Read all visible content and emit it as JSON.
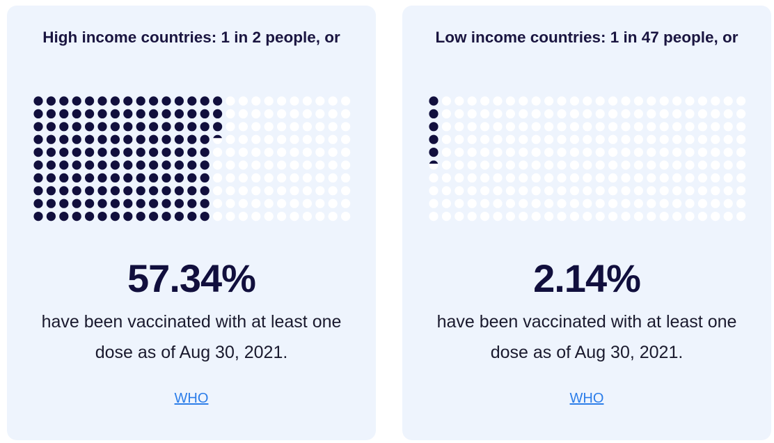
{
  "chart_data": [
    {
      "type": "waffle",
      "title": "High income countries: 1 in 2 people, or",
      "value_percent": 57.34,
      "value_label": "57.34%",
      "description": "have been vaccinated with at least one dose as of Aug 30, 2021.",
      "source": "WHO",
      "grid": {
        "rows": 10,
        "cols": 25
      }
    },
    {
      "type": "waffle",
      "title": "Low income countries: 1 in 47 people, or",
      "value_percent": 2.14,
      "value_label": "2.14%",
      "description": "have been vaccinated with at least one dose as of Aug 30, 2021.",
      "source": "WHO",
      "grid": {
        "rows": 10,
        "cols": 25
      }
    }
  ],
  "colors": {
    "filled_dot": "#110f3d",
    "empty_dot": "#ffffff",
    "card_background": "#eef4fd",
    "link": "#2b7de9"
  }
}
